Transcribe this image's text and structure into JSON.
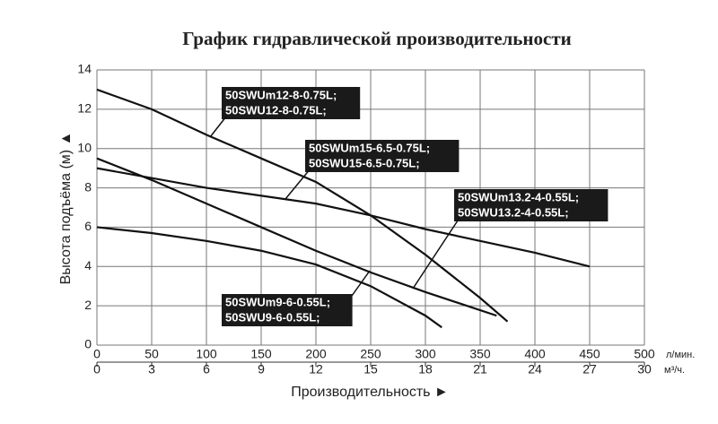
{
  "chart_data": {
    "type": "line",
    "title": "График гидравлической производительности",
    "y_label": "Высота подъёма (м) ▲",
    "x_label": "Производительность ►",
    "x_unit": "л/мин.",
    "x2_unit": "м³/ч.",
    "xlim": [
      0,
      500
    ],
    "xticks": [
      0,
      50,
      100,
      150,
      200,
      250,
      300,
      350,
      400,
      450,
      500
    ],
    "x2lim": [
      0,
      30
    ],
    "x2ticks": [
      0,
      3,
      6,
      9,
      12,
      15,
      18,
      21,
      24,
      27,
      30
    ],
    "ylim": [
      0,
      14
    ],
    "yticks": [
      0,
      2,
      4,
      6,
      8,
      10,
      12,
      14
    ],
    "grid": true,
    "series": [
      {
        "name": [
          "50SWUm12-8-0.75L;",
          "50SWU12-8-0.75L;"
        ],
        "color": "#111111",
        "x": [
          0,
          50,
          100,
          150,
          200,
          250,
          300,
          350,
          375
        ],
        "values": [
          13,
          12,
          10.7,
          9.5,
          8.3,
          6.6,
          4.6,
          2.4,
          1.2
        ]
      },
      {
        "name": [
          "50SWUm15-6.5-0.75L;",
          "50SWU15-6.5-0.75L;"
        ],
        "color": "#111111",
        "x": [
          0,
          100,
          200,
          250,
          300,
          350,
          400,
          450
        ],
        "values": [
          9,
          8,
          7.2,
          6.6,
          5.9,
          5.3,
          4.7,
          4
        ]
      },
      {
        "name": [
          "50SWUm13.2-4-0.55L;",
          "50SWU13.2-4-0.55L;"
        ],
        "color": "#111111",
        "x": [
          0,
          50,
          100,
          150,
          200,
          250,
          300,
          365
        ],
        "values": [
          9.5,
          8.4,
          7.2,
          6,
          4.8,
          3.7,
          2.7,
          1.5
        ]
      },
      {
        "name": [
          "50SWUm9-6-0.55L;",
          "50SWU9-6-0.55L;"
        ],
        "color": "#111111",
        "x": [
          0,
          50,
          100,
          150,
          200,
          250,
          300,
          315
        ],
        "values": [
          6,
          5.7,
          5.3,
          4.8,
          4.1,
          3,
          1.5,
          0.9
        ]
      }
    ]
  }
}
